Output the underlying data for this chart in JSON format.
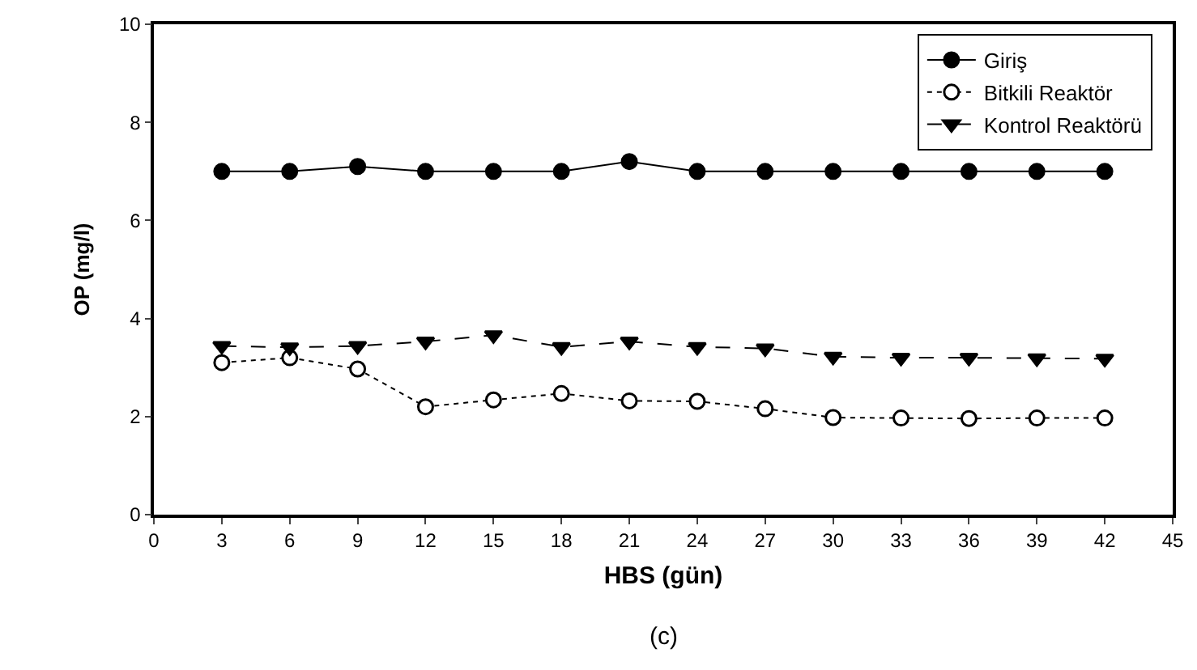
{
  "chart_data": {
    "type": "line",
    "xlabel": "HBS (gün)",
    "ylabel": "OP (mg/l)",
    "x": [
      3,
      6,
      9,
      12,
      15,
      18,
      21,
      24,
      27,
      30,
      33,
      36,
      39,
      42
    ],
    "series": [
      {
        "name": "Giriş",
        "color": "#000000",
        "marker": "circle",
        "line_style": "solid",
        "values": [
          7.0,
          7.0,
          7.1,
          7.0,
          7.0,
          7.0,
          7.2,
          7.0,
          7.0,
          7.0,
          7.0,
          7.0,
          7.0,
          7.0
        ]
      },
      {
        "name": "Bitkili Reaktör",
        "color": "#000000",
        "marker": "circle-open",
        "line_style": "dotted",
        "values": [
          3.1,
          3.2,
          2.97,
          2.2,
          2.34,
          2.47,
          2.32,
          2.31,
          2.16,
          1.98,
          1.97,
          1.96,
          1.97,
          1.97
        ]
      },
      {
        "name": "Kontrol Reaktörü",
        "color": "#000000",
        "marker": "triangle",
        "line_style": "dashed",
        "values": [
          3.44,
          3.41,
          3.44,
          3.53,
          3.66,
          3.42,
          3.53,
          3.42,
          3.39,
          3.22,
          3.2,
          3.2,
          3.19,
          3.18
        ]
      }
    ],
    "xlim": [
      0,
      45
    ],
    "xticks": [
      0,
      3,
      6,
      9,
      12,
      15,
      18,
      21,
      24,
      27,
      30,
      33,
      36,
      39,
      42,
      45
    ],
    "ylim": [
      0,
      10
    ],
    "yticks": [
      0,
      2,
      4,
      6,
      8,
      10
    ],
    "legend": "top right",
    "annotations": [
      "(c)"
    ]
  }
}
